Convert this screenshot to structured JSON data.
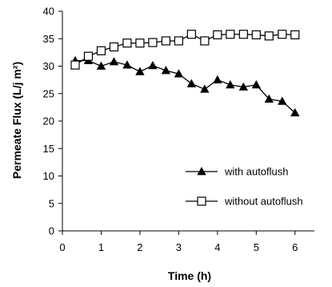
{
  "chart_data": {
    "type": "line",
    "title": "",
    "xlabel": "Time (h)",
    "ylabel": "Permeate Flux (L/j m²)",
    "xlim": [
      0,
      6.5
    ],
    "ylim": [
      0,
      40
    ],
    "xticks": [
      0,
      1,
      2,
      3,
      4,
      5,
      6
    ],
    "yticks": [
      0,
      5,
      10,
      15,
      20,
      25,
      30,
      35,
      40
    ],
    "grid": false,
    "legend_position": "bottom-right",
    "series": [
      {
        "name": "with autoflush",
        "marker": "filled-triangle",
        "color": "#000000",
        "x": [
          0.33,
          0.67,
          1.0,
          1.33,
          1.67,
          2.0,
          2.33,
          2.67,
          3.0,
          3.33,
          3.67,
          4.0,
          4.33,
          4.67,
          5.0,
          5.33,
          5.67,
          6.0
        ],
        "y": [
          31.0,
          31.0,
          30.0,
          30.8,
          30.2,
          29.0,
          30.1,
          29.2,
          28.6,
          26.8,
          25.8,
          27.5,
          26.6,
          26.2,
          26.6,
          24.0,
          23.6,
          21.5
        ]
      },
      {
        "name": "without autoflush",
        "marker": "open-square",
        "color": "#000000",
        "x": [
          0.33,
          0.67,
          1.0,
          1.33,
          1.67,
          2.0,
          2.33,
          2.67,
          3.0,
          3.33,
          3.67,
          4.0,
          4.33,
          4.67,
          5.0,
          5.33,
          5.67,
          6.0
        ],
        "y": [
          30.2,
          31.8,
          32.8,
          33.5,
          34.2,
          34.2,
          34.3,
          34.6,
          34.6,
          35.8,
          34.6,
          35.7,
          35.8,
          35.8,
          35.7,
          35.5,
          35.8,
          35.7
        ]
      }
    ]
  }
}
